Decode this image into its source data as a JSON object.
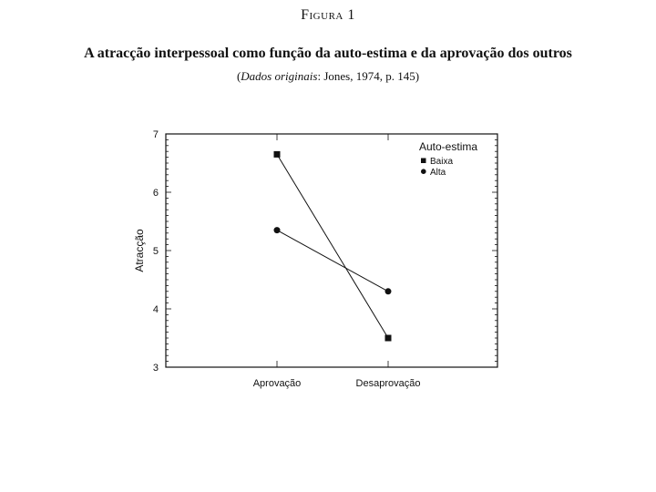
{
  "figure": {
    "label": "Figura 1",
    "title": "A atracção interpessoal como função da auto-estima e da aprovação dos outros",
    "source_prefix": "(",
    "source_italic": "Dados originais",
    "source_rest": ": Jones, 1974, p. 145)"
  },
  "chart_data": {
    "type": "line",
    "categories": [
      "Aprovação",
      "Desaprovação"
    ],
    "ylabel": "Atracção",
    "xlabel": "",
    "ylim": [
      3,
      7
    ],
    "yticks": [
      3,
      4,
      5,
      6,
      7
    ],
    "grid": false,
    "legend_title": "Auto-estima",
    "legend_position": "top-right",
    "series": [
      {
        "name": "Baixa",
        "marker": "square",
        "values": [
          6.65,
          3.5
        ]
      },
      {
        "name": "Alta",
        "marker": "circle",
        "values": [
          5.35,
          4.3
        ]
      }
    ]
  }
}
